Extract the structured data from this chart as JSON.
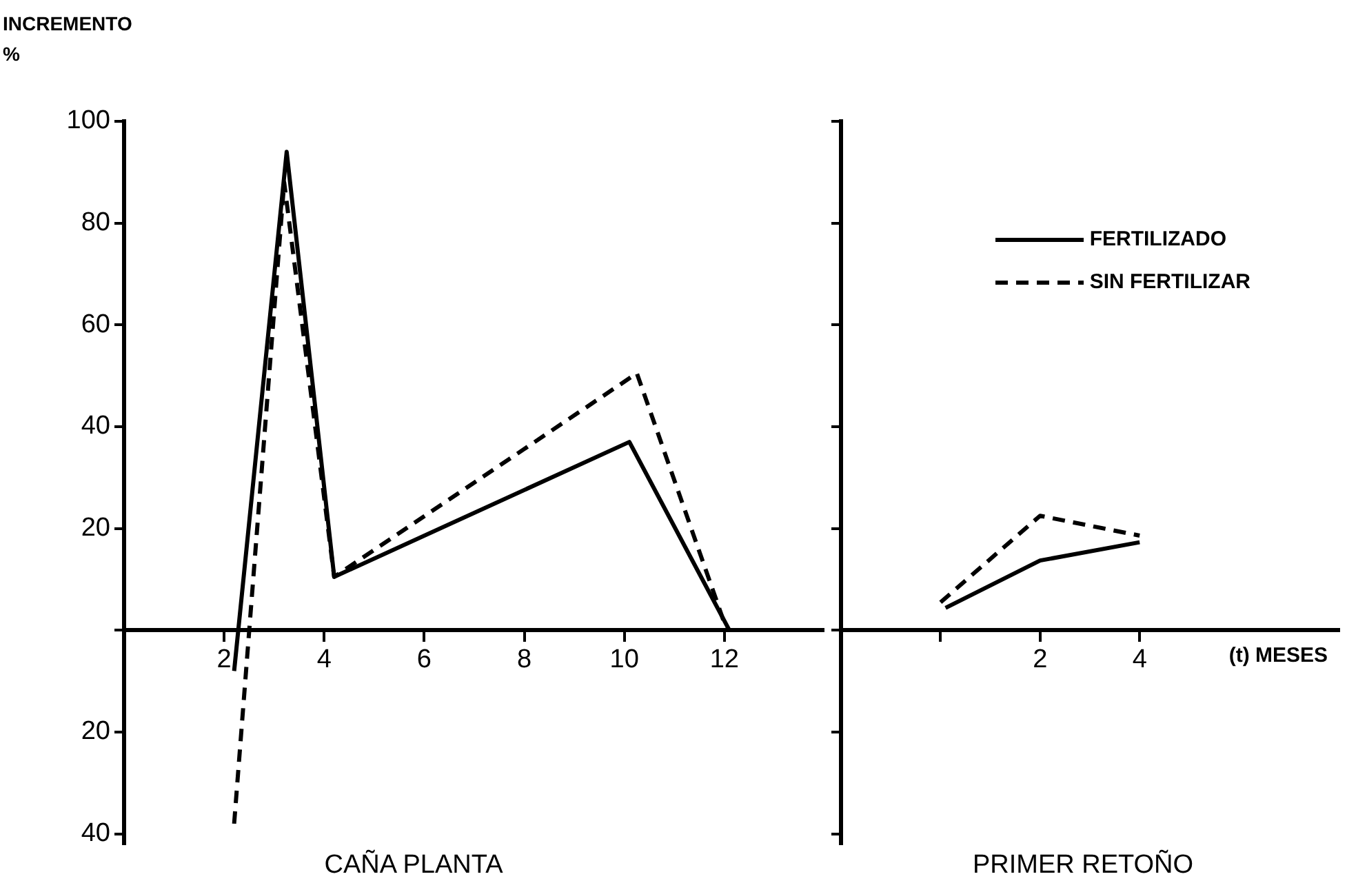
{
  "chart_data": [
    {
      "type": "line",
      "title": "CAÑA PLANTA",
      "ylabel": "INCREMENTO %",
      "xlim": [
        0,
        14
      ],
      "xticks": [
        2,
        4,
        6,
        8,
        10,
        12
      ],
      "ylim": [
        -42,
        100
      ],
      "yticks": [
        100,
        80,
        60,
        40,
        20,
        {
          "value": 0,
          "label": null
        },
        {
          "value": -20,
          "label": "20"
        },
        {
          "value": -40,
          "label": "40"
        }
      ],
      "grid": false,
      "marker": "none",
      "series": [
        {
          "color": "#000000",
          "line_style": "solid",
          "x": [
            2.2,
            3.25,
            4.2,
            10.1,
            12.1
          ],
          "values": [
            -8,
            94,
            10.5,
            37,
            0
          ]
        },
        {
          "color": "#000000",
          "line_style": "dashed",
          "x": [
            2.2,
            3.2,
            4.2,
            10.25,
            12.05
          ],
          "values": [
            -38,
            88,
            10.5,
            50.5,
            0
          ]
        }
      ]
    },
    {
      "type": "line",
      "title": "PRIMER RETOÑO",
      "xlabel": "(t) MESES",
      "xlim": [
        -2,
        8
      ],
      "xticks": [
        {
          "value": 0,
          "label": null
        },
        2,
        4
      ],
      "ylim": [
        -42,
        100
      ],
      "yticks": [
        100,
        80,
        60,
        40,
        20,
        {
          "value": 0,
          "label": null
        },
        {
          "value": -20,
          "label": null
        },
        {
          "value": -40,
          "label": null
        }
      ],
      "tick_labels": "x",
      "grid": false,
      "marker": "none",
      "legend": "top right",
      "series": [
        {
          "name": "FERTILIZADO",
          "color": "#000000",
          "line_style": "solid",
          "x": [
            0.1,
            2,
            4
          ],
          "values": [
            4.4,
            13.7,
            17.3
          ]
        },
        {
          "name": "SIN FERTILIZAR",
          "color": "#000000",
          "line_style": "dashed",
          "x": [
            0,
            2,
            4
          ],
          "values": [
            5.5,
            22.5,
            18.6
          ]
        }
      ]
    }
  ]
}
